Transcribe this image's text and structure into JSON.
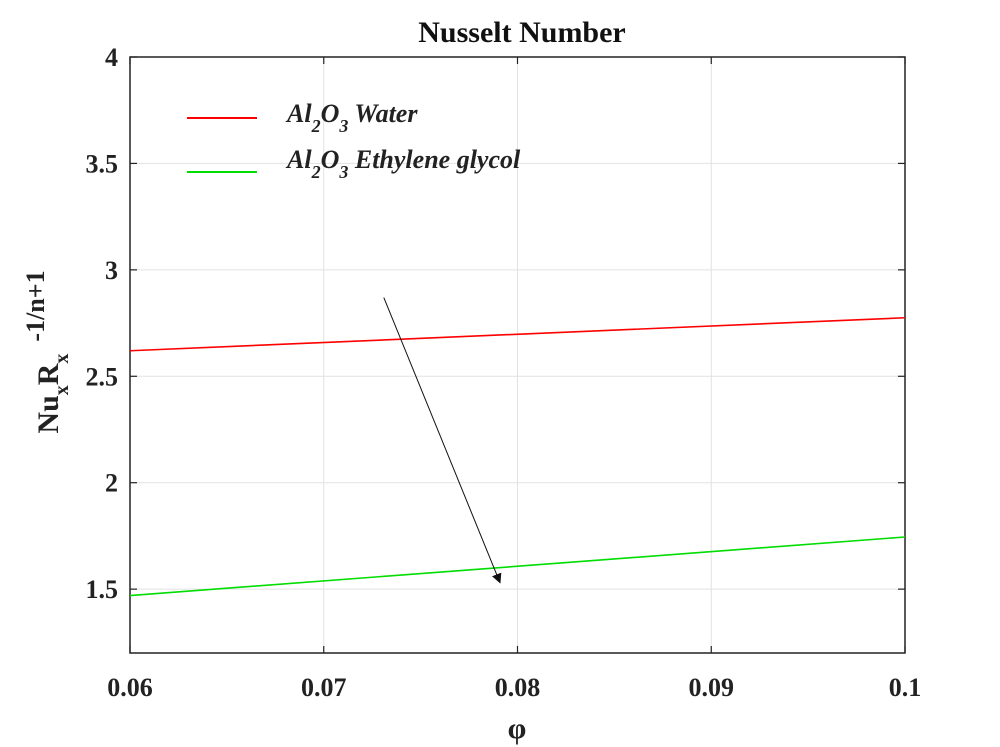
{
  "chart_data": {
    "type": "line",
    "title": "Nusselt Number",
    "xlabel": "φ",
    "ylabel": {
      "base1": "Nu",
      "sub1": "x",
      "base2": "R",
      "sub2": "x",
      "sup": "-1/n+1"
    },
    "xlim": [
      0.06,
      0.1
    ],
    "ylim": [
      1.2,
      4
    ],
    "x_ticks": [
      0.06,
      0.07,
      0.08,
      0.09,
      0.1
    ],
    "x_tick_labels": [
      "0.06",
      "0.07",
      "0.08",
      "0.09",
      "0.1"
    ],
    "y_ticks": [
      1.5,
      2,
      2.5,
      3,
      3.5,
      4
    ],
    "y_tick_labels": [
      "1.5",
      "2",
      "2.5",
      "3",
      "3.5",
      "4"
    ],
    "grid": true,
    "legend_position": "top-left",
    "series": [
      {
        "name": "Al2O3 Water",
        "legend": {
          "a": "Al",
          "s1": "2",
          "b": "O",
          "s2": "3",
          "rest": " Water"
        },
        "color": "#ff0000",
        "x": [
          0.06,
          0.1
        ],
        "y": [
          2.62,
          2.775
        ]
      },
      {
        "name": "Al2O3 Ethylene glycol",
        "legend": {
          "a": "Al",
          "s1": "2",
          "b": "O",
          "s2": "3",
          "rest": " Ethylene glycol"
        },
        "color": "#00dd00",
        "x": [
          0.06,
          0.1
        ],
        "y": [
          1.47,
          1.745
        ]
      }
    ],
    "annotations": [
      {
        "type": "arrow",
        "from": [
          0.0731,
          2.87
        ],
        "to": [
          0.0791,
          1.53
        ]
      }
    ]
  }
}
